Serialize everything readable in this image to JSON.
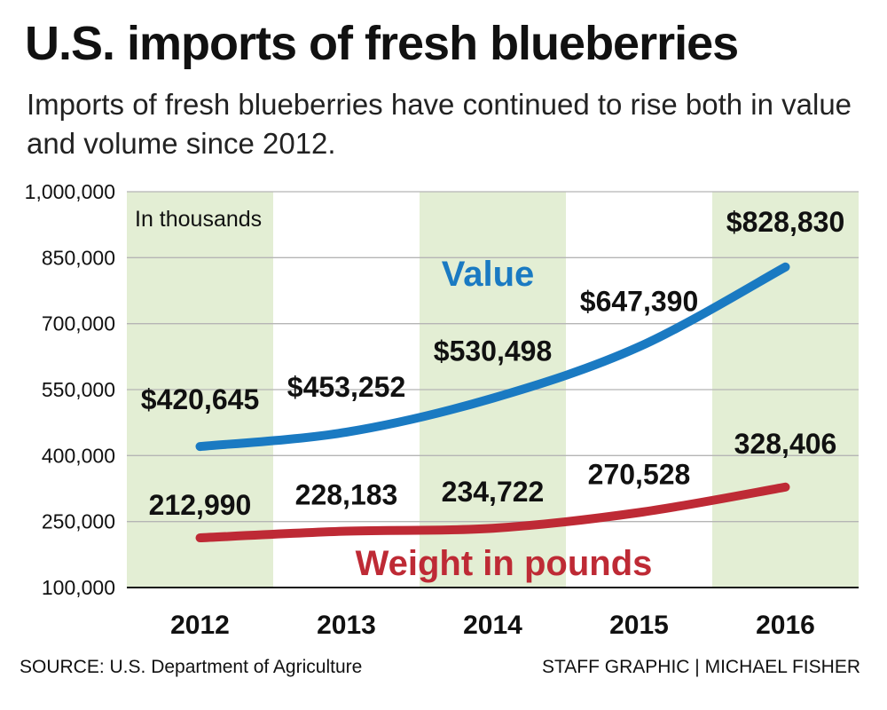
{
  "header": {
    "title": "U.S. imports of fresh blueberries",
    "subtitle": "Imports of fresh blueberries have continued to rise both in value and volume since 2012."
  },
  "footer": {
    "source": "SOURCE: U.S. Department of Agriculture",
    "credit": "STAFF GRAPHIC | MICHAEL FISHER"
  },
  "colors": {
    "value_line": "#1a7ac2",
    "weight_line": "#be2a35",
    "band": "#e3eed4",
    "grid": "#b5b5b5"
  },
  "chart_data": {
    "type": "line",
    "note": "In thousands",
    "categories": [
      "2012",
      "2013",
      "2014",
      "2015",
      "2016"
    ],
    "ylim": [
      100000,
      1000000
    ],
    "y_ticks": [
      "1,000,000",
      "850,000",
      "700,000",
      "550,000",
      "400,000",
      "250,000",
      "100,000"
    ],
    "y_tick_values": [
      1000000,
      850000,
      700000,
      550000,
      400000,
      250000,
      100000
    ],
    "grid": true,
    "series": [
      {
        "name": "Value",
        "values": [
          420645,
          453252,
          530498,
          647390,
          828830
        ],
        "labels": [
          "$420,645",
          "$453,252",
          "$530,498",
          "$647,390",
          "$828,830"
        ]
      },
      {
        "name": "Weight in pounds",
        "values": [
          212990,
          228183,
          234722,
          270528,
          328406
        ],
        "labels": [
          "212,990",
          "228,183",
          "234,722",
          "270,528",
          "328,406"
        ]
      }
    ]
  }
}
